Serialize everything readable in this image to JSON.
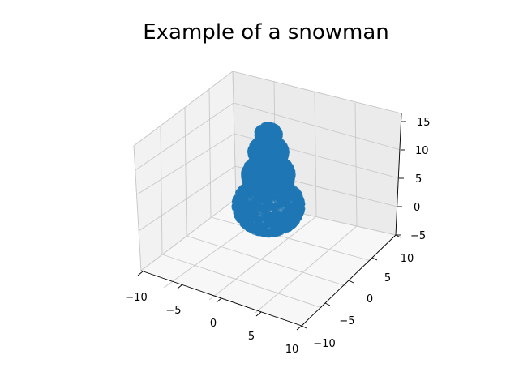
{
  "chart_data": {
    "type": "scatter",
    "title": "Example of a snowman",
    "projection": "3d",
    "xlim": [
      -10,
      10
    ],
    "ylim": [
      -10,
      10
    ],
    "zlim": [
      -5,
      15
    ],
    "x_ticks": [
      "−10",
      "−5",
      "0",
      "5",
      "10"
    ],
    "y_ticks": [
      "−10",
      "−5",
      "0",
      "5",
      "10"
    ],
    "z_ticks": [
      "−5",
      "0",
      "5",
      "10",
      "15"
    ],
    "grid": true,
    "marker_color": "#1f77b4",
    "series": [
      {
        "shape": "sphere",
        "center": [
          0,
          0,
          0
        ],
        "radius": 3.6
      },
      {
        "shape": "sphere",
        "center": [
          0,
          0,
          5.2
        ],
        "radius": 2.6
      },
      {
        "shape": "sphere",
        "center": [
          0,
          0,
          9.2
        ],
        "radius": 1.9
      },
      {
        "shape": "sphere",
        "center": [
          0,
          0,
          12.2
        ],
        "radius": 1.2
      }
    ]
  }
}
